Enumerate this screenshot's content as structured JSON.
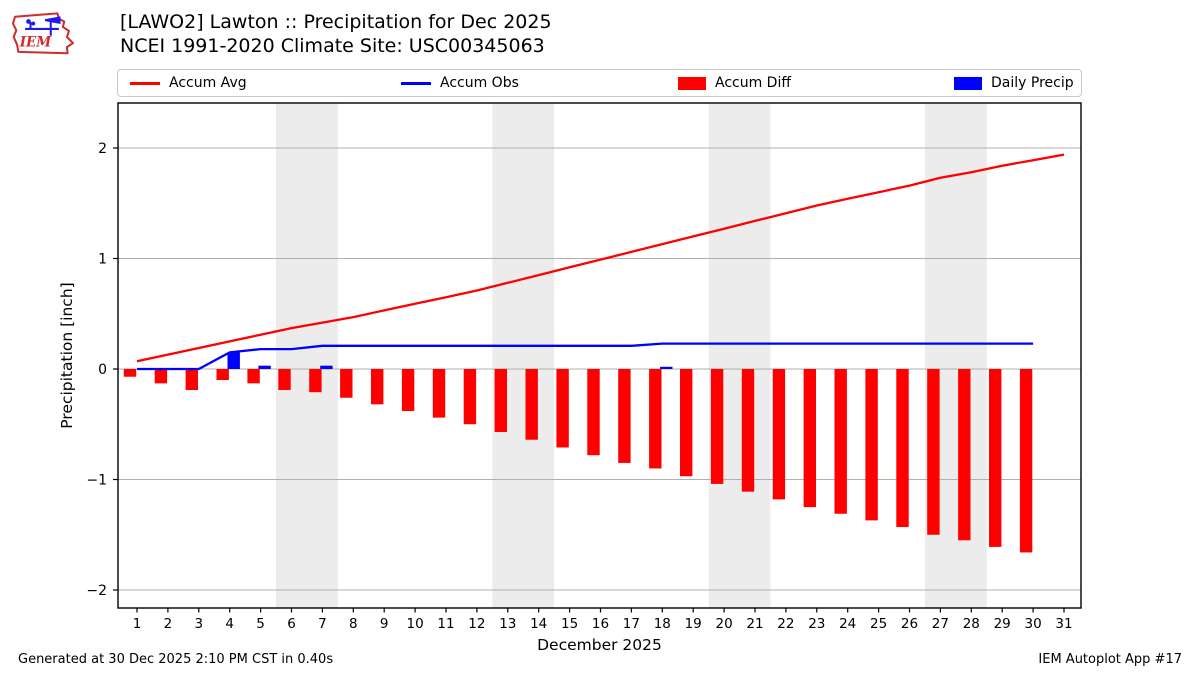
{
  "header": {
    "title_line1": "[LAWO2] Lawton :: Precipitation for Dec 2025",
    "title_line2": "NCEI 1991-2020 Climate Site: USC00345063",
    "logo_text": "IEM"
  },
  "legend": {
    "items": [
      {
        "label": "Accum Avg",
        "swatch": "line",
        "color": "#ff0000"
      },
      {
        "label": "Accum Obs",
        "swatch": "line",
        "color": "#0000ff"
      },
      {
        "label": "Accum Diff",
        "swatch": "patch",
        "color": "#ff0000"
      },
      {
        "label": "Daily Precip",
        "swatch": "patch",
        "color": "#0000ff"
      }
    ]
  },
  "footer": {
    "left": "Generated at 30 Dec 2025 2:10 PM CST in 0.40s",
    "right": "IEM Autoplot App #17"
  },
  "chart_data": {
    "type": "line+bar",
    "title": "[LAWO2] Lawton :: Precipitation for Dec 2025",
    "xlabel": "December 2025",
    "ylabel": "Precipitation [inch]",
    "x_range_days": [
      1,
      31
    ],
    "ylim": [
      -2.16,
      2.41
    ],
    "yticks": [
      -2,
      -1,
      0,
      1,
      2
    ],
    "ytick_labels": [
      "−2",
      "−1",
      "0",
      "1",
      "2"
    ],
    "xticks": [
      1,
      2,
      3,
      4,
      5,
      6,
      7,
      8,
      9,
      10,
      11,
      12,
      13,
      14,
      15,
      16,
      17,
      18,
      19,
      20,
      21,
      22,
      23,
      24,
      25,
      26,
      27,
      28,
      29,
      30,
      31
    ],
    "grid": "horizontal",
    "grid_color": "#b0b0b0",
    "weekend_band_color": "#ececec",
    "weekend_bands_days": [
      [
        5.5,
        7.5
      ],
      [
        12.5,
        14.5
      ],
      [
        19.5,
        21.5
      ],
      [
        26.5,
        28.5
      ]
    ],
    "series": [
      {
        "name": "Accum Avg",
        "type": "line",
        "color": "#ff0000",
        "days": [
          1,
          2,
          3,
          4,
          5,
          6,
          7,
          8,
          9,
          10,
          11,
          12,
          13,
          14,
          15,
          16,
          17,
          18,
          19,
          20,
          21,
          22,
          23,
          24,
          25,
          26,
          27,
          28,
          29,
          30,
          31
        ],
        "values": [
          0.07,
          0.13,
          0.19,
          0.25,
          0.31,
          0.37,
          0.42,
          0.47,
          0.53,
          0.59,
          0.65,
          0.71,
          0.78,
          0.85,
          0.92,
          0.99,
          1.06,
          1.13,
          1.2,
          1.27,
          1.34,
          1.41,
          1.48,
          1.54,
          1.6,
          1.66,
          1.73,
          1.78,
          1.84,
          1.89,
          1.94
        ]
      },
      {
        "name": "Accum Obs",
        "type": "line",
        "color": "#0000ff",
        "days": [
          1,
          2,
          3,
          4,
          5,
          6,
          7,
          8,
          9,
          10,
          11,
          12,
          13,
          14,
          15,
          16,
          17,
          18,
          19,
          20,
          21,
          22,
          23,
          24,
          25,
          26,
          27,
          28,
          29,
          30
        ],
        "values": [
          0,
          0,
          0,
          0.15,
          0.18,
          0.18,
          0.21,
          0.21,
          0.21,
          0.21,
          0.21,
          0.21,
          0.21,
          0.21,
          0.21,
          0.21,
          0.21,
          0.23,
          0.23,
          0.23,
          0.23,
          0.23,
          0.23,
          0.23,
          0.23,
          0.23,
          0.23,
          0.23,
          0.23,
          0.23
        ]
      },
      {
        "name": "Accum Diff",
        "type": "bar",
        "color": "#ff0000",
        "days": [
          1,
          2,
          3,
          4,
          5,
          6,
          7,
          8,
          9,
          10,
          11,
          12,
          13,
          14,
          15,
          16,
          17,
          18,
          19,
          20,
          21,
          22,
          23,
          24,
          25,
          26,
          27,
          28,
          29,
          30
        ],
        "values": [
          -0.07,
          -0.13,
          -0.19,
          -0.1,
          -0.13,
          -0.19,
          -0.21,
          -0.26,
          -0.32,
          -0.38,
          -0.44,
          -0.5,
          -0.57,
          -0.64,
          -0.71,
          -0.78,
          -0.85,
          -0.9,
          -0.97,
          -1.04,
          -1.11,
          -1.18,
          -1.25,
          -1.31,
          -1.37,
          -1.43,
          -1.5,
          -1.55,
          -1.61,
          -1.66
        ]
      },
      {
        "name": "Daily Precip",
        "type": "bar",
        "color": "#0000ff",
        "days": [
          4,
          5,
          7,
          18
        ],
        "values": [
          0.15,
          0.03,
          0.03,
          0.02
        ]
      }
    ]
  }
}
